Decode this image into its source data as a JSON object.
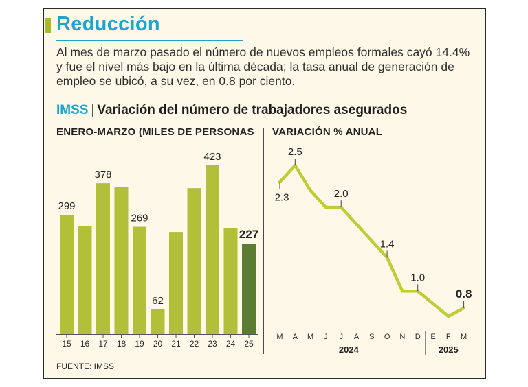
{
  "title": "Reducción",
  "description": "Al mes de marzo pasado el número de nuevos empleos formales cayó 14.4% y fue el nivel más bajo en la última década; la tasa anual de generación de empleo se ubicó, a su vez, en 0.8 por ciento.",
  "subtitle": {
    "org": "IMSS",
    "separator": "|",
    "text": "Variación del número de trabajadores asegurados"
  },
  "source": "FUENTE: IMSS",
  "colors": {
    "bar": "#b2bf39",
    "bar_highlight": "#5b7d31",
    "line": "#bfcc36",
    "accent": "#1aa6cf",
    "background": "#fdf8e8"
  },
  "chart_data": [
    {
      "type": "bar",
      "label": "ENERO-MARZO (MILES DE PERSONAS",
      "categories": [
        "15",
        "16",
        "17",
        "18",
        "19",
        "20",
        "21",
        "22",
        "23",
        "24",
        "25"
      ],
      "values": [
        299,
        270,
        378,
        368,
        269,
        62,
        256,
        366,
        423,
        265,
        227
      ],
      "data_labels": [
        {
          "index": 0,
          "text": "299"
        },
        {
          "index": 2,
          "text": "378"
        },
        {
          "index": 4,
          "text": "269"
        },
        {
          "index": 5,
          "text": "62"
        },
        {
          "index": 8,
          "text": "423"
        },
        {
          "index": 10,
          "text": "227",
          "bold": true
        }
      ],
      "highlight_index": 10,
      "ylim": [
        0,
        450
      ]
    },
    {
      "type": "line",
      "label": "VARIACIÓN % ANUAL",
      "categories": [
        "M",
        "A",
        "M",
        "J",
        "J",
        "A",
        "S",
        "O",
        "N",
        "D",
        "E",
        "F",
        "M"
      ],
      "years": [
        {
          "label": "2024",
          "from": 0,
          "to": 9
        },
        {
          "label": "2025",
          "from": 10,
          "to": 12
        }
      ],
      "values": [
        2.3,
        2.5,
        2.2,
        2.0,
        2.0,
        1.8,
        1.6,
        1.4,
        1.0,
        1.0,
        0.85,
        0.7,
        0.8
      ],
      "data_labels": [
        {
          "index": 0,
          "text": "2.3",
          "position": "below"
        },
        {
          "index": 1,
          "text": "2.5",
          "position": "above"
        },
        {
          "index": 4,
          "text": "2.0",
          "position": "above"
        },
        {
          "index": 7,
          "text": "1.4",
          "position": "above"
        },
        {
          "index": 9,
          "text": "1.0",
          "position": "above"
        },
        {
          "index": 12,
          "text": "0.8",
          "position": "above",
          "bold": true
        }
      ],
      "ylim": [
        0.7,
        2.5
      ]
    }
  ]
}
